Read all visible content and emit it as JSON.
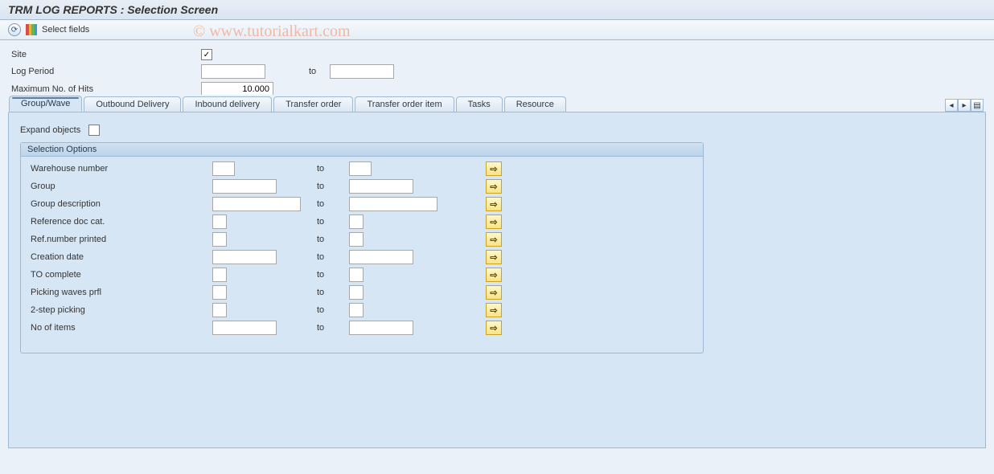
{
  "title": "TRM LOG REPORTS : Selection Screen",
  "watermark": "© www.tutorialkart.com",
  "toolbar": {
    "select_fields": "Select fields"
  },
  "top_fields": {
    "site_label": "Site",
    "site_checked": "✓",
    "log_period_label": "Log Period",
    "log_from": "",
    "to": "to",
    "log_to": "",
    "max_hits_label": "Maximum No. of Hits",
    "max_hits_value": "10.000"
  },
  "tabs": [
    {
      "label": "Group/Wave",
      "active": true
    },
    {
      "label": "Outbound Delivery",
      "active": false
    },
    {
      "label": "Inbound delivery",
      "active": false
    },
    {
      "label": "Transfer order",
      "active": false
    },
    {
      "label": "Transfer order item",
      "active": false
    },
    {
      "label": "Tasks",
      "active": false
    },
    {
      "label": "Resource",
      "active": false
    }
  ],
  "expand_label": "Expand objects",
  "group_title": "Selection Options",
  "to_label": "to",
  "rows": [
    {
      "label": "Warehouse number",
      "w1": 28,
      "w2": 28
    },
    {
      "label": "Group",
      "w1": 80,
      "w2": 80
    },
    {
      "label": "Group description",
      "w1": 110,
      "w2": 110
    },
    {
      "label": "Reference doc cat.",
      "w1": 18,
      "w2": 18
    },
    {
      "label": "Ref.number printed",
      "w1": 18,
      "w2": 18
    },
    {
      "label": "Creation date",
      "w1": 80,
      "w2": 80
    },
    {
      "label": "TO complete",
      "w1": 18,
      "w2": 18
    },
    {
      "label": "Picking waves prfl",
      "w1": 18,
      "w2": 18
    },
    {
      "label": "2-step picking",
      "w1": 18,
      "w2": 18
    },
    {
      "label": "No of items",
      "w1": 80,
      "w2": 80
    }
  ],
  "colors": {
    "bg": "#eaf1f9",
    "panel": "#d7e6f4",
    "border": "#9db9d4",
    "yellow_btn": "#f9e484"
  }
}
